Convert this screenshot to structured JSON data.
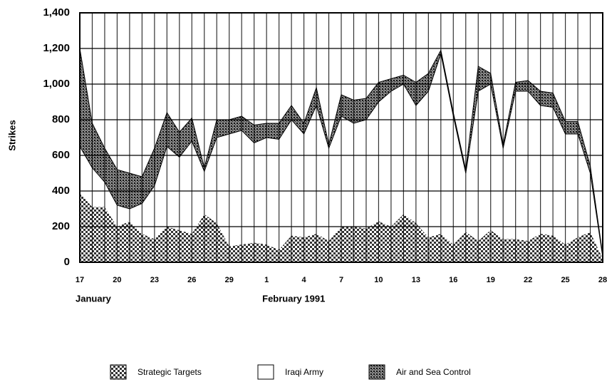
{
  "chart_data": {
    "type": "stacked_area",
    "y_label": "Strikes",
    "categories": [
      "17",
      null,
      null,
      "20",
      null,
      null,
      "23",
      null,
      null,
      "26",
      null,
      null,
      "29",
      null,
      null,
      "1",
      null,
      null,
      "4",
      null,
      null,
      "7",
      null,
      null,
      "10",
      null,
      null,
      "13",
      null,
      null,
      "16",
      null,
      null,
      "19",
      null,
      null,
      "22",
      null,
      null,
      "25",
      null,
      null,
      "28"
    ],
    "month_labels": [
      {
        "index": 0,
        "label": "January"
      },
      {
        "index": 15,
        "label": "February 1991"
      }
    ],
    "series": [
      {
        "name": "Strategic Targets",
        "color": "#333333",
        "values": [
          390,
          310,
          310,
          200,
          230,
          160,
          130,
          200,
          180,
          160,
          270,
          220,
          90,
          100,
          110,
          100,
          70,
          150,
          140,
          160,
          120,
          200,
          200,
          190,
          230,
          200,
          270,
          220,
          140,
          160,
          100,
          170,
          120,
          180,
          130,
          130,
          120,
          160,
          150,
          100,
          140,
          170,
          20
        ]
      },
      {
        "name": "Iraqi Army",
        "color": "#ffffff",
        "values": [
          260,
          220,
          140,
          120,
          70,
          170,
          300,
          450,
          410,
          520,
          240,
          480,
          630,
          640,
          560,
          600,
          620,
          650,
          580,
          720,
          520,
          620,
          580,
          610,
          670,
          760,
          730,
          660,
          820,
          1010,
          720,
          330,
          840,
          820,
          510,
          830,
          840,
          720,
          720,
          620,
          580,
          330,
          10
        ]
      },
      {
        "name": "Air and Sea Control",
        "color": "#111111",
        "values": [
          550,
          250,
          190,
          200,
          200,
          150,
          210,
          190,
          140,
          130,
          20,
          100,
          80,
          80,
          100,
          80,
          90,
          80,
          60,
          100,
          20,
          120,
          130,
          120,
          110,
          70,
          50,
          130,
          100,
          20,
          20,
          20,
          140,
          60,
          20,
          50,
          60,
          80,
          80,
          70,
          70,
          40,
          10
        ]
      }
    ],
    "ylim": [
      0,
      1400
    ],
    "yticks": [
      0,
      200,
      400,
      600,
      800,
      {
        "value": 1000,
        "label": "1,000"
      },
      {
        "value": 1200,
        "label": "1,200"
      },
      {
        "value": 1400,
        "label": "1,400"
      }
    ],
    "grid": true
  }
}
